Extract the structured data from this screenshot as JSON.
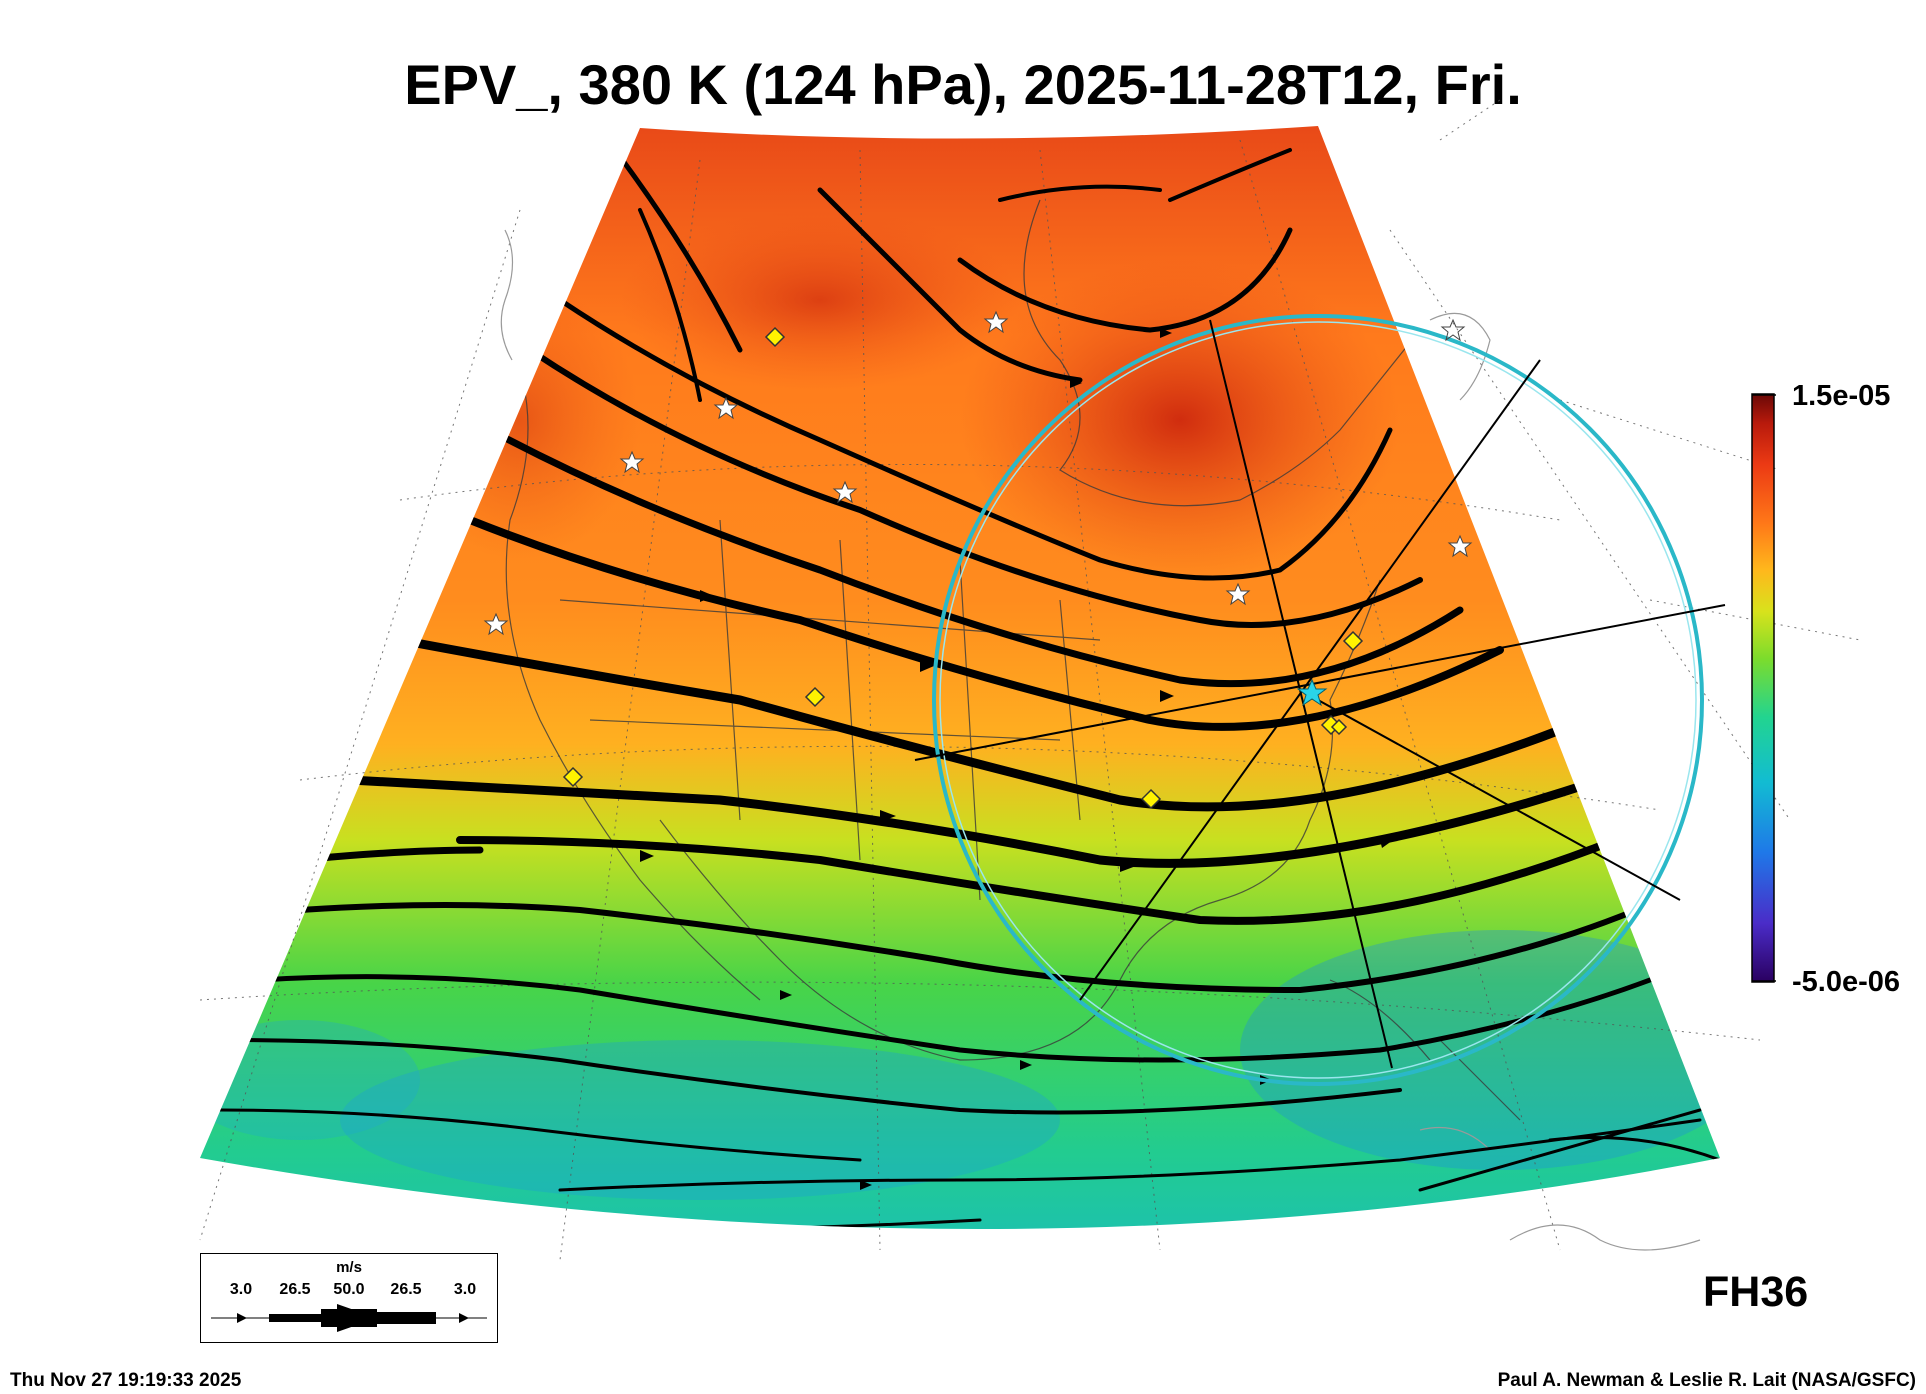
{
  "title": "EPV_, 380 K (124 hPa), 2025-11-28T12, Fri.",
  "colorbar": {
    "max_label": "1.5e-05",
    "min_label": "-5.0e-06",
    "colors": [
      "#2a0060",
      "#4a2cc8",
      "#1f78e8",
      "#12bcd2",
      "#22d490",
      "#7cdc2c",
      "#d8e21c",
      "#ffb81c",
      "#ff7818",
      "#ec3a14",
      "#b81a0c",
      "#6a0806"
    ]
  },
  "forecast_hour": "FH36",
  "legend": {
    "unit": "m/s",
    "values": [
      "3.0",
      "26.5",
      "50.0",
      "26.5",
      "3.0"
    ]
  },
  "footer": {
    "timestamp": "Thu Nov 27 19:19:33 2025",
    "credit": "Paul A. Newman & Leslie R. Lait (NASA/GSFC)"
  },
  "map": {
    "projection": "polar stereographic sector, North America",
    "markers": {
      "stars": 8,
      "diamonds": 7,
      "cyan_center_star": 1
    },
    "range_ring_color": "#2ab8c8",
    "streamline_color": "#000000"
  }
}
